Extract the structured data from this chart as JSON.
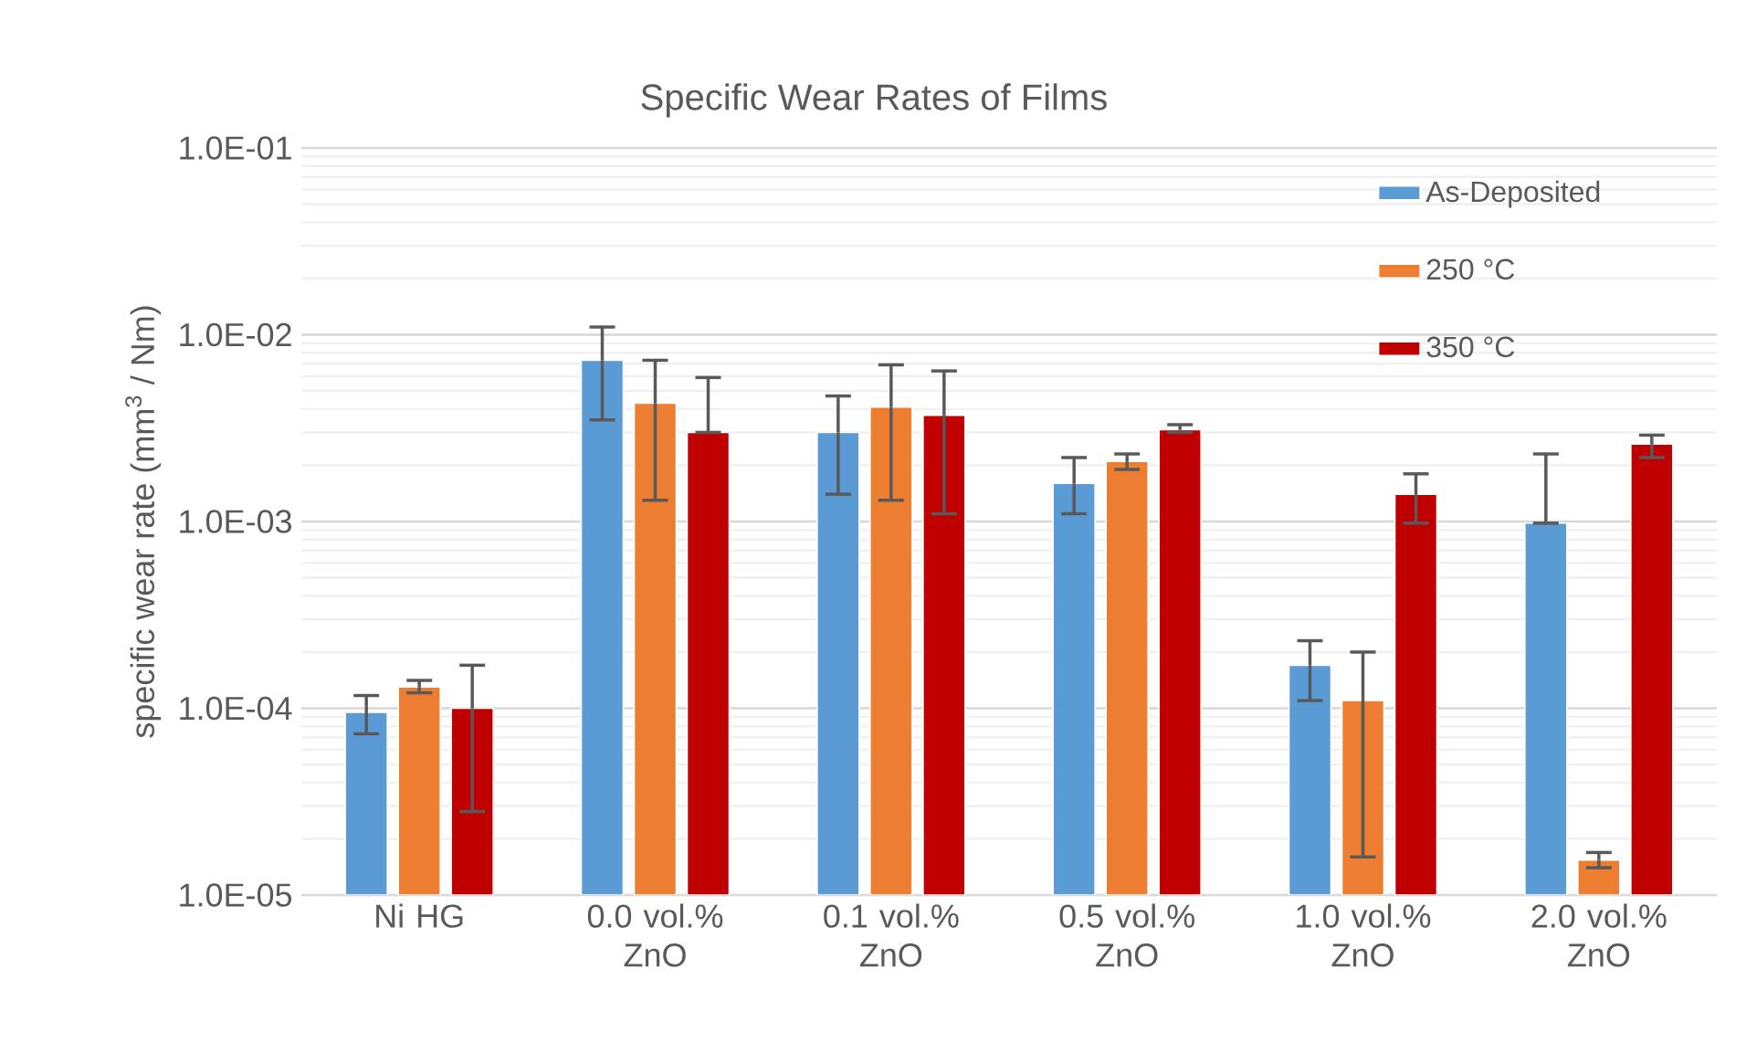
{
  "chart_data": {
    "type": "bar",
    "title": "Specific Wear Rates of Films",
    "ylabel": "specific wear rate (mm$^{3}$ / Nm)",
    "categories": [
      "Ni HG",
      "0.0 vol.% ZnO",
      "0.1 vol.% ZnO",
      "0.5 vol.% ZnO",
      "1.0 vol.% ZnO",
      "2.0 vol.% ZnO"
    ],
    "series": [
      {
        "name": "As-Deposited",
        "color": "#5b9bd5",
        "values": [
          9.5e-05,
          0.0073,
          0.003,
          0.0016,
          0.00017,
          0.00098
        ],
        "errors": [
          [
            7.3e-05,
            0.000117
          ],
          [
            0.0035,
            0.011
          ],
          [
            0.0014,
            0.0047
          ],
          [
            0.0011,
            0.0022
          ],
          [
            0.00011,
            0.00023
          ],
          [
            0.00098,
            0.0023
          ]
        ]
      },
      {
        "name": "250 °C",
        "color": "#ed7d31",
        "values": [
          0.00013,
          0.0043,
          0.0041,
          0.0021,
          0.00011,
          1.54e-05
        ],
        "errors": [
          [
            0.000121,
            0.000141
          ],
          [
            0.0013,
            0.0073
          ],
          [
            0.0013,
            0.0069
          ],
          [
            0.0019,
            0.0023
          ],
          [
            1.6e-05,
            0.0002
          ],
          [
            1.4e-05,
            1.69e-05
          ]
        ]
      },
      {
        "name": "350 °C",
        "color": "#c00000",
        "values": [
          0.0001,
          0.003,
          0.0037,
          0.0031,
          0.0014,
          0.0026
        ],
        "errors": [
          [
            2.8e-05,
            0.00017
          ],
          [
            0.003,
            0.0059
          ],
          [
            0.0011,
            0.0064
          ],
          [
            0.003,
            0.0033
          ],
          [
            0.00098,
            0.0018
          ],
          [
            0.0022,
            0.0029
          ]
        ]
      }
    ],
    "log": true,
    "ylim": [
      1e-05,
      0.1
    ],
    "yticks": [
      {
        "value": 1e-05,
        "label": "1.0E-05"
      },
      {
        "value": 0.0001,
        "label": "1.0E-04"
      },
      {
        "value": 0.001,
        "label": "1.0E-03"
      },
      {
        "value": 0.01,
        "label": "1.0E-02"
      },
      {
        "value": 0.1,
        "label": "1.0E-01"
      }
    ],
    "grid": "y",
    "legend": "top right"
  }
}
